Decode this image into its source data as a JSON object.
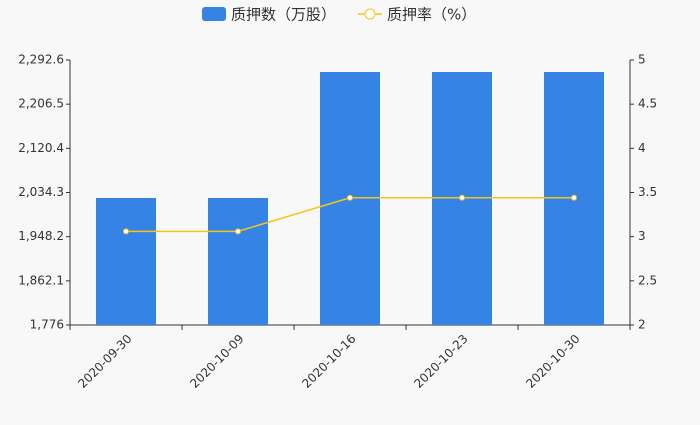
{
  "chart_data": {
    "type": "bar",
    "categories": [
      "2020-09-30",
      "2020-10-09",
      "2020-10-16",
      "2020-10-23",
      "2020-10-30"
    ],
    "series": [
      {
        "name": "质押数（万股）",
        "type": "bar",
        "color": "#3583e4",
        "values": [
          2023.6,
          2023.6,
          2269.2,
          2269.2,
          2269.2
        ]
      },
      {
        "name": "质押率（%）",
        "type": "line",
        "axis": "y2",
        "color": "#f5c518",
        "values": [
          3.06,
          3.06,
          3.44,
          3.44,
          3.44
        ]
      }
    ],
    "ylim": [
      1776,
      2292.6
    ],
    "yticks": [
      {
        "value": 1776,
        "label": "1,776"
      },
      {
        "value": 1862.1,
        "label": "1,862.1"
      },
      {
        "value": 1948.2,
        "label": "1,948.2"
      },
      {
        "value": 2034.3,
        "label": "2,034.3"
      },
      {
        "value": 2120.4,
        "label": "2,120.4"
      },
      {
        "value": 2206.5,
        "label": "2,206.5"
      },
      {
        "value": 2292.6,
        "label": "2,292.6"
      }
    ],
    "y2lim": [
      2,
      5
    ],
    "y2ticks": [
      2,
      2.5,
      3,
      3.5,
      4,
      4.5,
      5
    ],
    "legend": "top"
  }
}
